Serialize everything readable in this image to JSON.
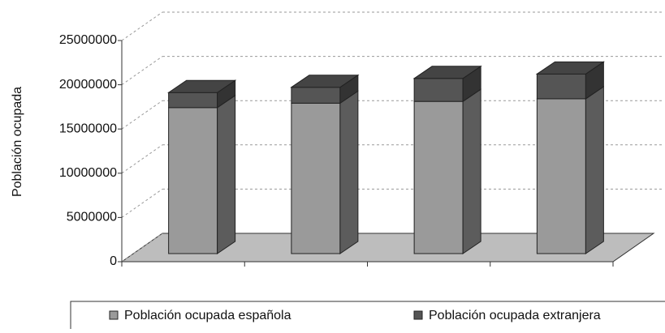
{
  "chart_data": {
    "type": "bar3d_stacked",
    "y_label": "Población ocupada",
    "categories": [
      null,
      null,
      null,
      null
    ],
    "series": [
      {
        "name": "Población ocupada española",
        "color": "#9a9a9a",
        "values": [
          16500000,
          17000000,
          17200000,
          17500000
        ]
      },
      {
        "name": "Población ocupada extranjera",
        "color": "#555555",
        "values": [
          1700000,
          1800000,
          2600000,
          2800000
        ]
      }
    ],
    "ylim": [
      0,
      25000000
    ],
    "yticks": [
      0,
      5000000,
      10000000,
      15000000,
      20000000,
      25000000
    ],
    "grid": true,
    "legend": "bottom"
  }
}
